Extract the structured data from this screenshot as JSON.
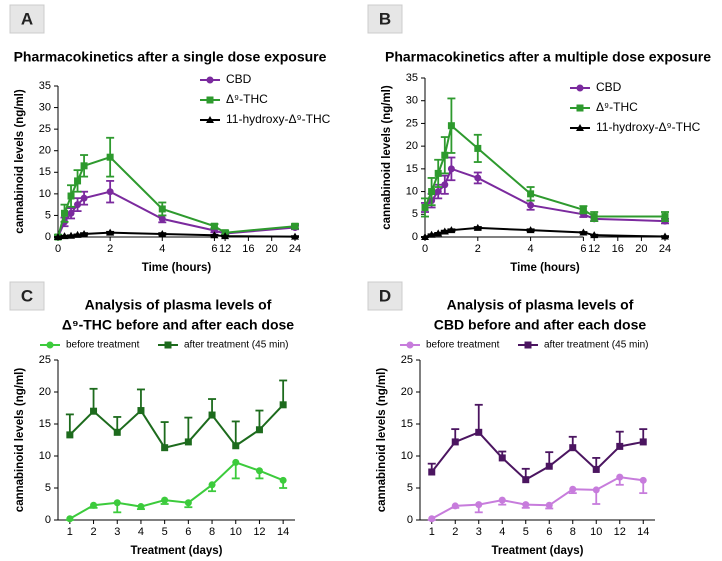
{
  "chart_data": [
    {
      "type": "line",
      "panel": "A",
      "title": [
        "Pharmacokinetics after a single dose exposure"
      ],
      "x_label": "Time (hours)",
      "y_label": "cannabinoid levels (ng/ml)",
      "x": [
        0,
        0.25,
        0.5,
        0.75,
        1,
        2,
        4,
        6,
        12,
        24
      ],
      "xlim": [
        0,
        24
      ],
      "xbreak": [
        6,
        12
      ],
      "xticks": [
        0,
        2,
        4,
        6,
        12,
        16,
        20,
        24
      ],
      "ylim": [
        0,
        35
      ],
      "yticks": [
        0,
        5,
        10,
        15,
        20,
        25,
        30,
        35
      ],
      "legend": "upper right",
      "series": [
        {
          "name": "CBD",
          "color": "#7b2a9e",
          "marker": "circle",
          "error_direction": "both",
          "values": [
            0,
            3.5,
            5.5,
            7.5,
            9,
            10.5,
            4.2,
            1.5,
            0.8,
            2.2
          ],
          "errors": [
            0.3,
            1,
            1.2,
            1.5,
            1.5,
            2.5,
            0.8,
            0.4,
            0.3,
            0.4
          ]
        },
        {
          "name": "Δ⁹-THC",
          "color": "#2e9a2e",
          "marker": "square",
          "error_direction": "both",
          "values": [
            0,
            5.5,
            9.5,
            13,
            16.5,
            18.5,
            6.5,
            2.5,
            1,
            2.5
          ],
          "errors": [
            0.5,
            2,
            2.5,
            2.5,
            2.5,
            4.5,
            1.5,
            0.5,
            0.5,
            0.5
          ]
        },
        {
          "name": "11-hydroxy-Δ⁹-THC",
          "color": "#000000",
          "marker": "triangle",
          "error_direction": "both",
          "values": [
            0,
            0.2,
            0.3,
            0.5,
            0.7,
            1,
            0.7,
            0.4,
            0.2,
            0.1
          ],
          "errors": [
            0,
            0.1,
            0.1,
            0.1,
            0.2,
            0.2,
            0.2,
            0.1,
            0.1,
            0.1
          ]
        }
      ]
    },
    {
      "type": "line",
      "panel": "B",
      "title": [
        "Pharmacokinetics after a multiple dose exposure"
      ],
      "x_label": "Time (hours)",
      "y_label": "cannabinoid levels (ng/ml)",
      "x": [
        0,
        0.25,
        0.5,
        0.75,
        1,
        2,
        4,
        6,
        12,
        24
      ],
      "xlim": [
        0,
        24
      ],
      "xbreak": [
        6,
        12
      ],
      "xticks": [
        0,
        2,
        4,
        6,
        12,
        16,
        20,
        24
      ],
      "ylim": [
        0,
        35
      ],
      "yticks": [
        0,
        5,
        10,
        15,
        20,
        25,
        30,
        35
      ],
      "legend": "upper right",
      "series": [
        {
          "name": "CBD",
          "color": "#7b2a9e",
          "marker": "circle",
          "error_direction": "both",
          "values": [
            6.5,
            8,
            10,
            11.5,
            15,
            13,
            7,
            5,
            4,
            3.5
          ],
          "errors": [
            1,
            1.5,
            1.5,
            2,
            2.5,
            1.2,
            1,
            0.6,
            0.5,
            0.5
          ]
        },
        {
          "name": "Δ⁹-THC",
          "color": "#2e9a2e",
          "marker": "square",
          "error_direction": "both",
          "values": [
            6.5,
            10,
            14,
            18,
            24.5,
            19.5,
            9.5,
            6,
            4.5,
            4.5
          ],
          "errors": [
            2,
            3,
            3,
            4,
            6,
            3,
            1.5,
            0.8,
            1,
            1
          ]
        },
        {
          "name": "11-hydroxy-Δ⁹-THC",
          "color": "#000000",
          "marker": "triangle",
          "error_direction": "both",
          "values": [
            0,
            0.5,
            0.8,
            1.2,
            1.5,
            2,
            1.5,
            1,
            0.4,
            0.1
          ],
          "errors": [
            0,
            0.1,
            0.1,
            0.2,
            0.2,
            0.2,
            0.2,
            0.1,
            0.1,
            0.1
          ]
        }
      ]
    },
    {
      "type": "category-line",
      "panel": "C",
      "title": [
        "Analysis of plasma levels of",
        "Δ⁹-THC before and after each dose"
      ],
      "x_label": "Treatment (days)",
      "y_label": "cannabinoid levels (ng/ml)",
      "categories": [
        "1",
        "2",
        "3",
        "4",
        "5",
        "6",
        "8",
        "10",
        "12",
        "14"
      ],
      "ylim": [
        0,
        25
      ],
      "yticks": [
        0,
        5,
        10,
        15,
        20,
        25
      ],
      "legend": "top",
      "series": [
        {
          "name": "before treatment",
          "color": "#3ccb3c",
          "marker": "circle",
          "error_direction": "down",
          "values": [
            0.2,
            2.3,
            2.7,
            2.1,
            3.1,
            2.7,
            5.5,
            9,
            7.7,
            6.2
          ],
          "errors": [
            0.2,
            0.4,
            1.5,
            0.4,
            0.6,
            0.7,
            1,
            2.5,
            1.2,
            1.2
          ]
        },
        {
          "name": "after treatment (45 min)",
          "color": "#1d6b1d",
          "marker": "square",
          "error_direction": "up",
          "values": [
            13.3,
            17,
            13.7,
            17.1,
            11.3,
            12.2,
            16.4,
            11.6,
            14.1,
            18
          ],
          "errors": [
            3.2,
            3.5,
            2.4,
            3.3,
            4,
            3.8,
            2.5,
            3.8,
            3,
            3.8
          ]
        }
      ]
    },
    {
      "type": "category-line",
      "panel": "D",
      "title": [
        "Analysis of plasma levels of",
        "CBD before and after each dose"
      ],
      "x_label": "Treatment (days)",
      "y_label": "cannabinoid levels (ng/ml)",
      "categories": [
        "1",
        "2",
        "3",
        "4",
        "5",
        "6",
        "8",
        "10",
        "12",
        "14"
      ],
      "ylim": [
        0,
        25
      ],
      "yticks": [
        0,
        5,
        10,
        15,
        20,
        25
      ],
      "legend": "top",
      "series": [
        {
          "name": "before treatment",
          "color": "#c77cdc",
          "marker": "circle",
          "error_direction": "down",
          "values": [
            0.2,
            2.2,
            2.4,
            3.1,
            2.4,
            2.3,
            4.8,
            4.7,
            6.7,
            6.2
          ],
          "errors": [
            0.2,
            0.3,
            1.2,
            0.7,
            0.5,
            0.5,
            0.6,
            2.2,
            1.2,
            2
          ]
        },
        {
          "name": "after treatment (45 min)",
          "color": "#4b1560",
          "marker": "square",
          "error_direction": "up",
          "values": [
            7.5,
            12.2,
            13.7,
            9.7,
            6.3,
            8.4,
            11.3,
            7.9,
            11.5,
            12.2
          ],
          "errors": [
            1.3,
            2,
            4.3,
            1,
            1.7,
            2.2,
            1.7,
            1.8,
            2.3,
            2
          ]
        }
      ]
    }
  ]
}
